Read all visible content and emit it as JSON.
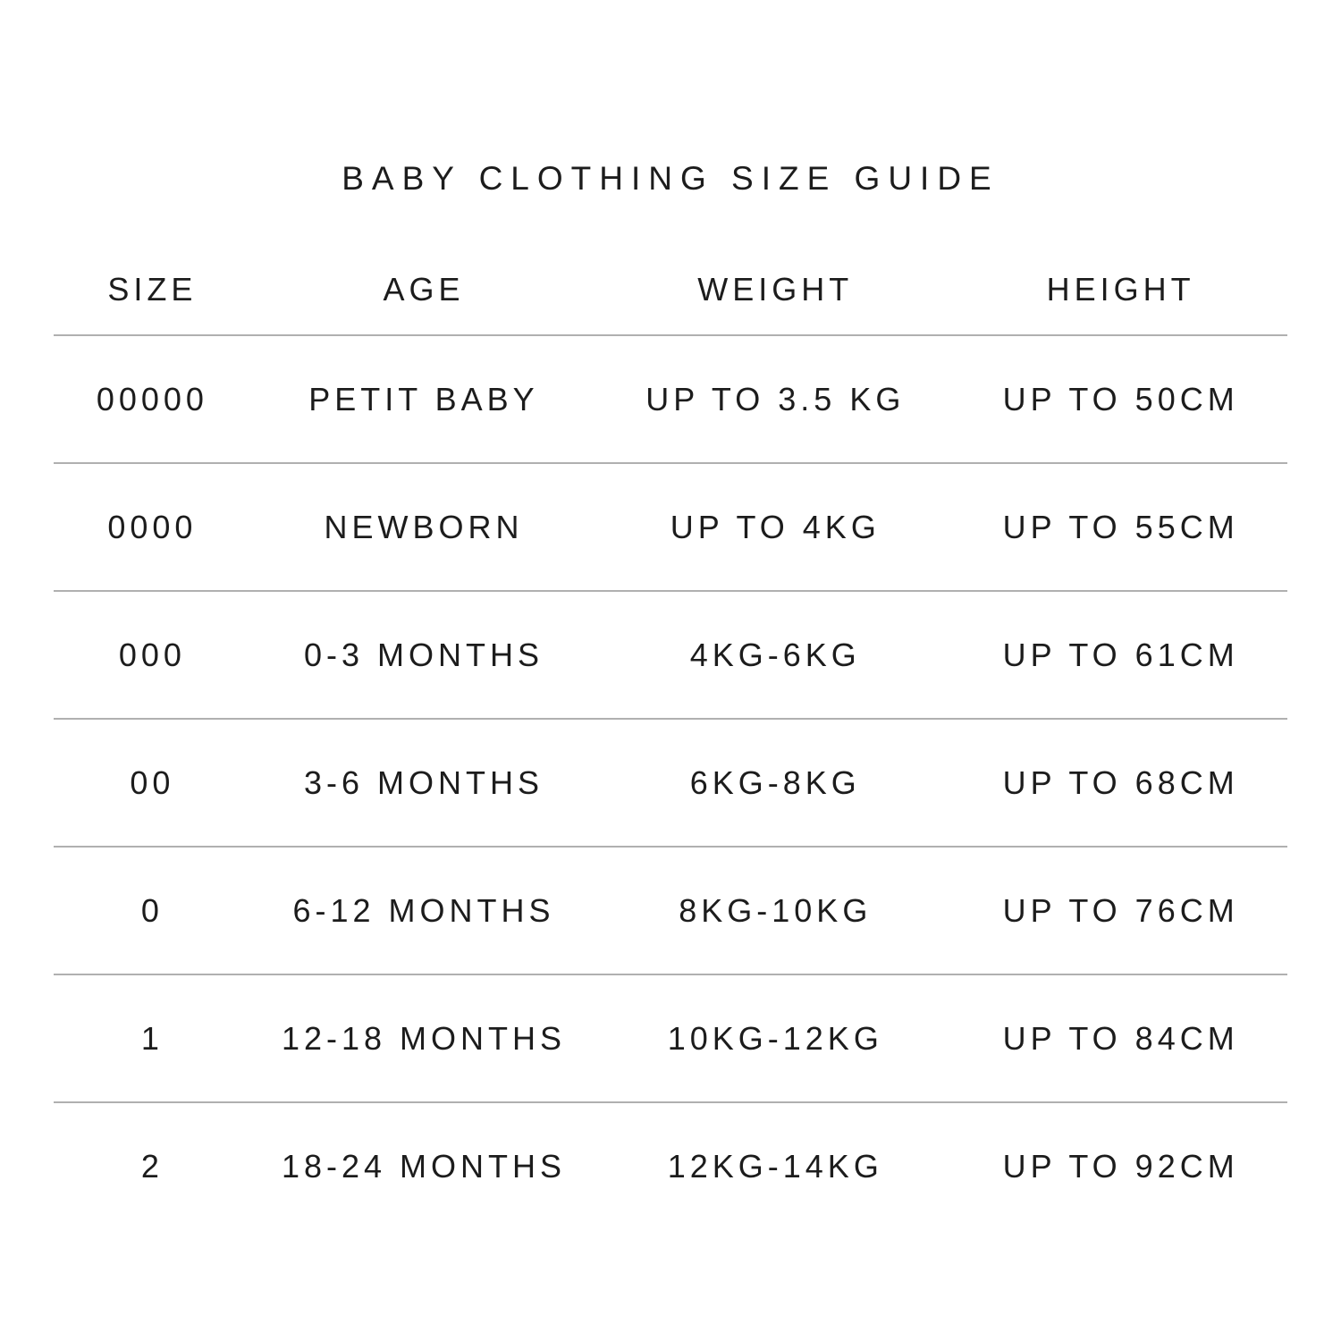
{
  "page": {
    "title": "BABY CLOTHING SIZE GUIDE",
    "background_color": "#ffffff",
    "text_color": "#1c1c1c",
    "divider_color": "#b0b0b0"
  },
  "table": {
    "headers": {
      "size": "SIZE",
      "age": "AGE",
      "weight": "WEIGHT",
      "height": "HEIGHT"
    },
    "rows": [
      {
        "size": "00000",
        "age": "PETIT BABY",
        "weight": "UP TO 3.5 KG",
        "height": "UP TO 50CM"
      },
      {
        "size": "0000",
        "age": "NEWBORN",
        "weight": "UP TO 4KG",
        "height": "UP TO 55CM"
      },
      {
        "size": "000",
        "age": "0-3 MONTHS",
        "weight": "4KG-6KG",
        "height": "UP TO 61CM"
      },
      {
        "size": "00",
        "age": "3-6 MONTHS",
        "weight": "6KG-8KG",
        "height": "UP TO 68CM"
      },
      {
        "size": "0",
        "age": "6-12 MONTHS",
        "weight": "8KG-10KG",
        "height": "UP TO 76CM"
      },
      {
        "size": "1",
        "age": "12-18 MONTHS",
        "weight": "10KG-12KG",
        "height": "UP TO 84CM"
      },
      {
        "size": "2",
        "age": "18-24 MONTHS",
        "weight": "12KG-14KG",
        "height": "UP TO 92CM"
      }
    ]
  },
  "chart_data": {
    "type": "table",
    "title": "BABY CLOTHING SIZE GUIDE",
    "columns": [
      "SIZE",
      "AGE",
      "WEIGHT",
      "HEIGHT"
    ],
    "rows": [
      [
        "00000",
        "PETIT BABY",
        "UP TO 3.5 KG",
        "UP TO 50CM"
      ],
      [
        "0000",
        "NEWBORN",
        "UP TO 4KG",
        "UP TO 55CM"
      ],
      [
        "000",
        "0-3 MONTHS",
        "4KG-6KG",
        "UP TO 61CM"
      ],
      [
        "00",
        "3-6 MONTHS",
        "6KG-8KG",
        "UP TO 68CM"
      ],
      [
        "0",
        "6-12 MONTHS",
        "8KG-10KG",
        "UP TO 76CM"
      ],
      [
        "1",
        "12-18 MONTHS",
        "10KG-12KG",
        "UP TO 84CM"
      ],
      [
        "2",
        "18-24 MONTHS",
        "12KG-14KG",
        "UP TO 92CM"
      ]
    ],
    "layout_hints": {
      "grid": "horizontal row dividers only, no vertical lines, no outer border after last row",
      "alignment": "all cells center-aligned",
      "column_width_fractions": [
        0.16,
        0.28,
        0.29,
        0.27
      ]
    }
  }
}
